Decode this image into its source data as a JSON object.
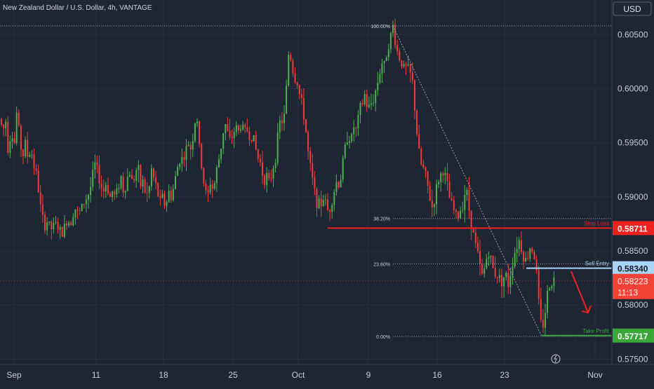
{
  "header": {
    "title": "New Zealand Dollar / U.S. Dollar, 4h, VANTAGE"
  },
  "currency_button": "USD",
  "colors": {
    "background": "#1e2533",
    "grid": "#283040",
    "axis_text": "#c8ccd4",
    "up": "#4caf50",
    "down": "#ef3b3b",
    "stop_loss": "#ef2020",
    "sell_entry": "#a8d4f5",
    "take_profit": "#3aa53a",
    "current": "#f44336"
  },
  "chart_data": {
    "type": "candlestick",
    "symbol": "NZDUSD",
    "interval": "4h",
    "y_axis": {
      "ticks": [
        "0.60500",
        "0.60000",
        "0.59500",
        "0.59000",
        "0.58500",
        "0.58000",
        "0.57500"
      ],
      "range": [
        0.5745,
        0.6082
      ]
    },
    "x_axis": {
      "ticks": [
        "Sep",
        "11",
        "18",
        "25",
        "Oct",
        "9",
        "16",
        "23",
        "Nov"
      ]
    },
    "price_path": [
      [
        0,
        0.5972
      ],
      [
        4,
        0.596
      ],
      [
        8,
        0.5972
      ],
      [
        12,
        0.594
      ],
      [
        16,
        0.5965
      ],
      [
        20,
        0.5945
      ],
      [
        24,
        0.598
      ],
      [
        28,
        0.5955
      ],
      [
        32,
        0.5935
      ],
      [
        36,
        0.595
      ],
      [
        40,
        0.5935
      ],
      [
        44,
        0.5945
      ],
      [
        48,
        0.593
      ],
      [
        52,
        0.592
      ],
      [
        56,
        0.59
      ],
      [
        60,
        0.588
      ],
      [
        64,
        0.5874
      ],
      [
        68,
        0.5878
      ],
      [
        72,
        0.587
      ],
      [
        76,
        0.5872
      ],
      [
        80,
        0.5875
      ],
      [
        84,
        0.587
      ],
      [
        88,
        0.5865
      ],
      [
        92,
        0.5872
      ],
      [
        96,
        0.588
      ],
      [
        100,
        0.5875
      ],
      [
        104,
        0.5885
      ],
      [
        108,
        0.589
      ],
      [
        112,
        0.5882
      ],
      [
        116,
        0.589
      ],
      [
        120,
        0.5895
      ],
      [
        124,
        0.59
      ],
      [
        128,
        0.5905
      ],
      [
        132,
        0.592
      ],
      [
        136,
        0.5932
      ],
      [
        140,
        0.592
      ],
      [
        144,
        0.591
      ],
      [
        148,
        0.5905
      ],
      [
        152,
        0.5915
      ],
      [
        156,
        0.5898
      ],
      [
        160,
        0.5905
      ],
      [
        164,
        0.59
      ],
      [
        168,
        0.5908
      ],
      [
        172,
        0.592
      ],
      [
        176,
        0.5905
      ],
      [
        180,
        0.5912
      ],
      [
        184,
        0.5925
      ],
      [
        188,
        0.5915
      ],
      [
        192,
        0.5918
      ],
      [
        196,
        0.593
      ],
      [
        200,
        0.591
      ],
      [
        204,
        0.5915
      ],
      [
        208,
        0.59
      ],
      [
        212,
        0.5905
      ],
      [
        216,
        0.5925
      ],
      [
        220,
        0.5915
      ],
      [
        224,
        0.5905
      ],
      [
        228,
        0.5895
      ],
      [
        232,
        0.59
      ],
      [
        236,
        0.589
      ],
      [
        240,
        0.5905
      ],
      [
        244,
        0.59
      ],
      [
        248,
        0.591
      ],
      [
        252,
        0.5925
      ],
      [
        256,
        0.5935
      ],
      [
        260,
        0.5935
      ],
      [
        264,
        0.594
      ],
      [
        268,
        0.595
      ],
      [
        272,
        0.5945
      ],
      [
        276,
        0.596
      ],
      [
        280,
        0.598
      ],
      [
        284,
        0.5945
      ],
      [
        288,
        0.5925
      ],
      [
        292,
        0.5905
      ],
      [
        296,
        0.59
      ],
      [
        300,
        0.5915
      ],
      [
        304,
        0.5905
      ],
      [
        308,
        0.5922
      ],
      [
        312,
        0.5935
      ],
      [
        316,
        0.595
      ],
      [
        320,
        0.597
      ],
      [
        324,
        0.596
      ],
      [
        328,
        0.595
      ],
      [
        332,
        0.5958
      ],
      [
        336,
        0.5965
      ],
      [
        340,
        0.596
      ],
      [
        344,
        0.5968
      ],
      [
        348,
        0.596
      ],
      [
        352,
        0.5962
      ],
      [
        356,
        0.5955
      ],
      [
        360,
        0.5958
      ],
      [
        364,
        0.5945
      ],
      [
        368,
        0.5935
      ],
      [
        372,
        0.593
      ],
      [
        376,
        0.5915
      ],
      [
        380,
        0.592
      ],
      [
        384,
        0.591
      ],
      [
        388,
        0.5925
      ],
      [
        392,
        0.5935
      ],
      [
        396,
        0.5955
      ],
      [
        400,
        0.5975
      ],
      [
        404,
        0.5965
      ],
      [
        408,
        0.6
      ],
      [
        412,
        0.604
      ],
      [
        416,
        0.602
      ],
      [
        420,
        0.601
      ],
      [
        424,
        0.6005
      ],
      [
        428,
        0.599
      ],
      [
        432,
        0.598
      ],
      [
        436,
        0.596
      ],
      [
        440,
        0.5935
      ],
      [
        444,
        0.592
      ],
      [
        448,
        0.5905
      ],
      [
        452,
        0.5895
      ],
      [
        456,
        0.589
      ],
      [
        460,
        0.59
      ],
      [
        464,
        0.5895
      ],
      [
        468,
        0.5885
      ],
      [
        472,
        0.5895
      ],
      [
        476,
        0.5905
      ],
      [
        480,
        0.5915
      ],
      [
        484,
        0.591
      ],
      [
        488,
        0.593
      ],
      [
        492,
        0.5945
      ],
      [
        496,
        0.596
      ],
      [
        500,
        0.595
      ],
      [
        504,
        0.5965
      ],
      [
        508,
        0.596
      ],
      [
        512,
        0.598
      ],
      [
        516,
        0.5985
      ],
      [
        520,
        0.5995
      ],
      [
        524,
        0.598
      ],
      [
        528,
        0.5985
      ],
      [
        532,
        0.599
      ],
      [
        536,
        0.6
      ],
      [
        540,
        0.6012
      ],
      [
        544,
        0.6025
      ],
      [
        548,
        0.602
      ],
      [
        552,
        0.604
      ],
      [
        556,
        0.6045
      ],
      [
        560,
        0.6058
      ],
      [
        564,
        0.604
      ],
      [
        568,
        0.603
      ],
      [
        572,
        0.6025
      ],
      [
        576,
        0.6018
      ],
      [
        580,
        0.602
      ],
      [
        584,
        0.6015
      ],
      [
        588,
        0.6005
      ],
      [
        592,
        0.5975
      ],
      [
        596,
        0.5945
      ],
      [
        600,
        0.593
      ],
      [
        604,
        0.5925
      ],
      [
        608,
        0.5915
      ],
      [
        612,
        0.59
      ],
      [
        616,
        0.589
      ],
      [
        620,
        0.59
      ],
      [
        624,
        0.5915
      ],
      [
        628,
        0.592
      ],
      [
        632,
        0.5925
      ],
      [
        636,
        0.5915
      ],
      [
        640,
        0.59
      ],
      [
        644,
        0.5892
      ],
      [
        648,
        0.5885
      ],
      [
        652,
        0.588
      ],
      [
        656,
        0.5888
      ],
      [
        660,
        0.5895
      ],
      [
        664,
        0.591
      ],
      [
        668,
        0.589
      ],
      [
        672,
        0.5875
      ],
      [
        676,
        0.586
      ],
      [
        680,
        0.585
      ],
      [
        684,
        0.5835
      ],
      [
        688,
        0.5825
      ],
      [
        692,
        0.584
      ],
      [
        696,
        0.585
      ],
      [
        700,
        0.584
      ],
      [
        704,
        0.583
      ],
      [
        708,
        0.5828
      ],
      [
        712,
        0.5825
      ],
      [
        716,
        0.5822
      ],
      [
        720,
        0.583
      ],
      [
        724,
        0.5818
      ],
      [
        728,
        0.5832
      ],
      [
        732,
        0.5845
      ],
      [
        736,
        0.5855
      ],
      [
        740,
        0.586
      ],
      [
        744,
        0.585
      ],
      [
        748,
        0.584
      ],
      [
        752,
        0.5845
      ],
      [
        756,
        0.5855
      ],
      [
        760,
        0.585
      ],
      [
        764,
        0.5835
      ],
      [
        768,
        0.58
      ],
      [
        772,
        0.5775
      ],
      [
        776,
        0.579
      ],
      [
        780,
        0.581
      ],
      [
        784,
        0.582
      ],
      [
        788,
        0.5824
      ],
      [
        792,
        0.5823
      ]
    ],
    "fib_levels": [
      {
        "label": "100.00%",
        "price": 0.6058
      },
      {
        "label": "38.20%",
        "price": 0.588
      },
      {
        "label": "23.60%",
        "price": 0.5838
      },
      {
        "label": "0.00%",
        "price": 0.5771
      }
    ],
    "fib_anchor_price": 0.6058,
    "lines": [
      {
        "name": "Stop Loss",
        "price": 0.58711,
        "axis_label": "0.58711"
      },
      {
        "name": "Sell Entry",
        "price": 0.5834,
        "axis_label": "0.58340"
      },
      {
        "name": "Take Profit",
        "price": 0.57717,
        "axis_label": "0.57717"
      }
    ],
    "current_price": {
      "label": "0.58223",
      "countdown": "11:13",
      "price": 0.58223
    },
    "projection_arrow": {
      "from_price": 0.5831,
      "to_price": 0.5793
    }
  }
}
